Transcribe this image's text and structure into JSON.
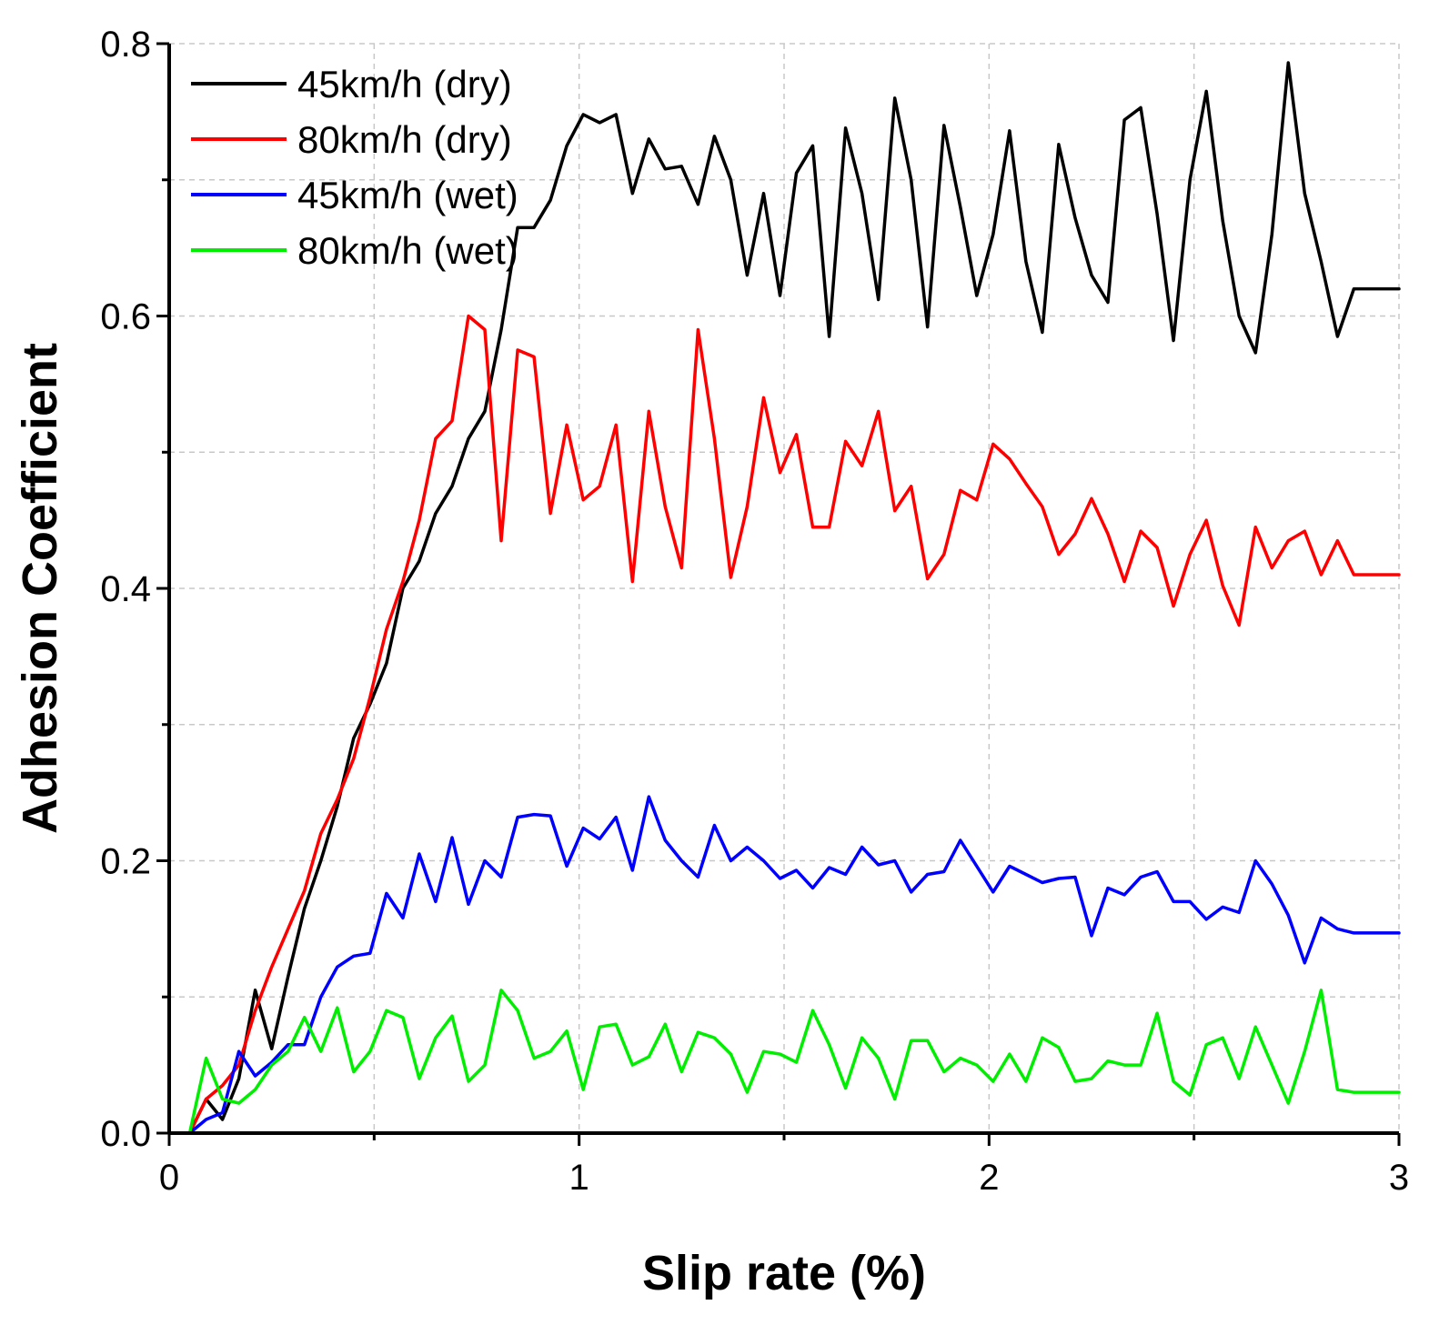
{
  "chart_data": {
    "type": "line",
    "title": "",
    "xlabel": "Slip rate (%)",
    "ylabel": "Adhesion Coefficient",
    "xlim": [
      0,
      3
    ],
    "ylim": [
      0,
      0.8
    ],
    "x_ticks": [
      0,
      1,
      2,
      3
    ],
    "x_tick_labels": [
      "0",
      "1",
      "2",
      "3"
    ],
    "x_minor_ticks": [
      0.5,
      1.5,
      2.5
    ],
    "y_ticks": [
      0.0,
      0.2,
      0.4,
      0.6,
      0.8
    ],
    "y_tick_labels": [
      "0.0",
      "0.2",
      "0.4",
      "0.6",
      "0.8"
    ],
    "y_minor_ticks": [
      0.1,
      0.3,
      0.5,
      0.7
    ],
    "grid": true,
    "legend_position": "top-left",
    "series": [
      {
        "name": "45km/h (dry)",
        "color": "#000000",
        "x": [
          0.05,
          0.09,
          0.13,
          0.17,
          0.21,
          0.25,
          0.29,
          0.33,
          0.37,
          0.41,
          0.45,
          0.49,
          0.53,
          0.57,
          0.61,
          0.65,
          0.69,
          0.73,
          0.77,
          0.81,
          0.85,
          0.89,
          0.93,
          0.97,
          1.01,
          1.05,
          1.09,
          1.13,
          1.17,
          1.21,
          1.25,
          1.29,
          1.33,
          1.37,
          1.41,
          1.45,
          1.49,
          1.53,
          1.57,
          1.61,
          1.65,
          1.69,
          1.73,
          1.77,
          1.81,
          1.85,
          1.89,
          1.93,
          1.97,
          2.01,
          2.05,
          2.09,
          2.13,
          2.17,
          2.21,
          2.25,
          2.29,
          2.33,
          2.37,
          2.41,
          2.45,
          2.49,
          2.53,
          2.57,
          2.61,
          2.65,
          2.69,
          2.73,
          2.77,
          2.81,
          2.85,
          2.89,
          2.93,
          2.97,
          3.0
        ],
        "y": [
          0.0,
          0.025,
          0.01,
          0.04,
          0.105,
          0.062,
          0.115,
          0.165,
          0.2,
          0.24,
          0.29,
          0.315,
          0.345,
          0.4,
          0.42,
          0.455,
          0.475,
          0.51,
          0.53,
          0.59,
          0.665,
          0.665,
          0.685,
          0.725,
          0.748,
          0.742,
          0.748,
          0.69,
          0.73,
          0.708,
          0.71,
          0.682,
          0.732,
          0.7,
          0.63,
          0.69,
          0.615,
          0.705,
          0.725,
          0.585,
          0.738,
          0.69,
          0.612,
          0.76,
          0.7,
          0.592,
          0.74,
          0.68,
          0.615,
          0.66,
          0.736,
          0.64,
          0.588,
          0.726,
          0.672,
          0.63,
          0.61,
          0.744,
          0.753,
          0.675,
          0.582,
          0.7,
          0.765,
          0.67,
          0.6,
          0.573,
          0.66,
          0.786,
          0.69,
          0.64,
          0.585,
          0.62,
          0.62,
          0.62,
          0.62
        ]
      },
      {
        "name": "80km/h (dry)",
        "color": "#ff0000",
        "x": [
          0.05,
          0.09,
          0.13,
          0.17,
          0.21,
          0.25,
          0.29,
          0.33,
          0.37,
          0.41,
          0.45,
          0.49,
          0.53,
          0.57,
          0.61,
          0.65,
          0.69,
          0.73,
          0.77,
          0.81,
          0.85,
          0.89,
          0.93,
          0.97,
          1.01,
          1.05,
          1.09,
          1.13,
          1.17,
          1.21,
          1.25,
          1.29,
          1.33,
          1.37,
          1.41,
          1.45,
          1.49,
          1.53,
          1.57,
          1.61,
          1.65,
          1.69,
          1.73,
          1.77,
          1.81,
          1.85,
          1.89,
          1.93,
          1.97,
          2.01,
          2.05,
          2.09,
          2.13,
          2.17,
          2.21,
          2.25,
          2.29,
          2.33,
          2.37,
          2.41,
          2.45,
          2.49,
          2.53,
          2.57,
          2.61,
          2.65,
          2.69,
          2.73,
          2.77,
          2.81,
          2.85,
          2.89,
          2.93,
          2.97,
          3.0
        ],
        "y": [
          0.0,
          0.025,
          0.035,
          0.05,
          0.09,
          0.122,
          0.15,
          0.178,
          0.22,
          0.245,
          0.275,
          0.32,
          0.37,
          0.405,
          0.45,
          0.51,
          0.523,
          0.6,
          0.59,
          0.435,
          0.575,
          0.57,
          0.455,
          0.52,
          0.465,
          0.475,
          0.52,
          0.405,
          0.53,
          0.46,
          0.415,
          0.59,
          0.51,
          0.408,
          0.46,
          0.54,
          0.485,
          0.513,
          0.445,
          0.445,
          0.508,
          0.49,
          0.53,
          0.457,
          0.475,
          0.407,
          0.425,
          0.472,
          0.465,
          0.506,
          0.495,
          0.477,
          0.46,
          0.425,
          0.44,
          0.466,
          0.44,
          0.405,
          0.442,
          0.43,
          0.387,
          0.425,
          0.45,
          0.402,
          0.373,
          0.445,
          0.415,
          0.435,
          0.442,
          0.41,
          0.435,
          0.41,
          0.41,
          0.41,
          0.41
        ]
      },
      {
        "name": "45km/h (wet)",
        "color": "#0000ff",
        "x": [
          0.05,
          0.09,
          0.13,
          0.17,
          0.21,
          0.25,
          0.29,
          0.33,
          0.37,
          0.41,
          0.45,
          0.49,
          0.53,
          0.57,
          0.61,
          0.65,
          0.69,
          0.73,
          0.77,
          0.81,
          0.85,
          0.89,
          0.93,
          0.97,
          1.01,
          1.05,
          1.09,
          1.13,
          1.17,
          1.21,
          1.25,
          1.29,
          1.33,
          1.37,
          1.41,
          1.45,
          1.49,
          1.53,
          1.57,
          1.61,
          1.65,
          1.69,
          1.73,
          1.77,
          1.81,
          1.85,
          1.89,
          1.93,
          1.97,
          2.01,
          2.05,
          2.09,
          2.13,
          2.17,
          2.21,
          2.25,
          2.29,
          2.33,
          2.37,
          2.41,
          2.45,
          2.49,
          2.53,
          2.57,
          2.61,
          2.65,
          2.69,
          2.73,
          2.77,
          2.81,
          2.85,
          2.89,
          2.93,
          2.97,
          3.0
        ],
        "y": [
          0.0,
          0.01,
          0.015,
          0.06,
          0.042,
          0.052,
          0.065,
          0.065,
          0.1,
          0.122,
          0.13,
          0.132,
          0.176,
          0.158,
          0.205,
          0.17,
          0.217,
          0.168,
          0.2,
          0.188,
          0.232,
          0.234,
          0.233,
          0.196,
          0.224,
          0.216,
          0.232,
          0.193,
          0.247,
          0.215,
          0.2,
          0.188,
          0.226,
          0.2,
          0.21,
          0.2,
          0.187,
          0.193,
          0.18,
          0.195,
          0.19,
          0.21,
          0.197,
          0.2,
          0.177,
          0.19,
          0.192,
          0.215,
          0.196,
          0.177,
          0.196,
          0.19,
          0.184,
          0.187,
          0.188,
          0.145,
          0.18,
          0.175,
          0.188,
          0.192,
          0.17,
          0.17,
          0.157,
          0.166,
          0.162,
          0.2,
          0.183,
          0.16,
          0.125,
          0.158,
          0.15,
          0.147,
          0.147,
          0.147,
          0.147
        ]
      },
      {
        "name": "80km/h (wet)",
        "color": "#00ee00",
        "x": [
          0.05,
          0.09,
          0.13,
          0.17,
          0.21,
          0.25,
          0.29,
          0.33,
          0.37,
          0.41,
          0.45,
          0.49,
          0.53,
          0.57,
          0.61,
          0.65,
          0.69,
          0.73,
          0.77,
          0.81,
          0.85,
          0.89,
          0.93,
          0.97,
          1.01,
          1.05,
          1.09,
          1.13,
          1.17,
          1.21,
          1.25,
          1.29,
          1.33,
          1.37,
          1.41,
          1.45,
          1.49,
          1.53,
          1.57,
          1.61,
          1.65,
          1.69,
          1.73,
          1.77,
          1.81,
          1.85,
          1.89,
          1.93,
          1.97,
          2.01,
          2.05,
          2.09,
          2.13,
          2.17,
          2.21,
          2.25,
          2.29,
          2.33,
          2.37,
          2.41,
          2.45,
          2.49,
          2.53,
          2.57,
          2.61,
          2.65,
          2.69,
          2.73,
          2.77,
          2.81,
          2.85,
          2.89,
          2.93,
          2.97,
          3.0
        ],
        "y": [
          0.0,
          0.055,
          0.025,
          0.022,
          0.032,
          0.05,
          0.06,
          0.085,
          0.06,
          0.092,
          0.045,
          0.06,
          0.09,
          0.085,
          0.04,
          0.07,
          0.086,
          0.038,
          0.05,
          0.105,
          0.09,
          0.055,
          0.06,
          0.075,
          0.032,
          0.078,
          0.08,
          0.05,
          0.056,
          0.08,
          0.045,
          0.074,
          0.07,
          0.058,
          0.03,
          0.06,
          0.058,
          0.052,
          0.09,
          0.065,
          0.033,
          0.07,
          0.055,
          0.025,
          0.068,
          0.068,
          0.045,
          0.055,
          0.05,
          0.038,
          0.058,
          0.038,
          0.07,
          0.063,
          0.038,
          0.04,
          0.053,
          0.05,
          0.05,
          0.088,
          0.038,
          0.028,
          0.065,
          0.07,
          0.04,
          0.078,
          0.05,
          0.022,
          0.06,
          0.105,
          0.032,
          0.03,
          0.03,
          0.03,
          0.03
        ]
      }
    ]
  }
}
